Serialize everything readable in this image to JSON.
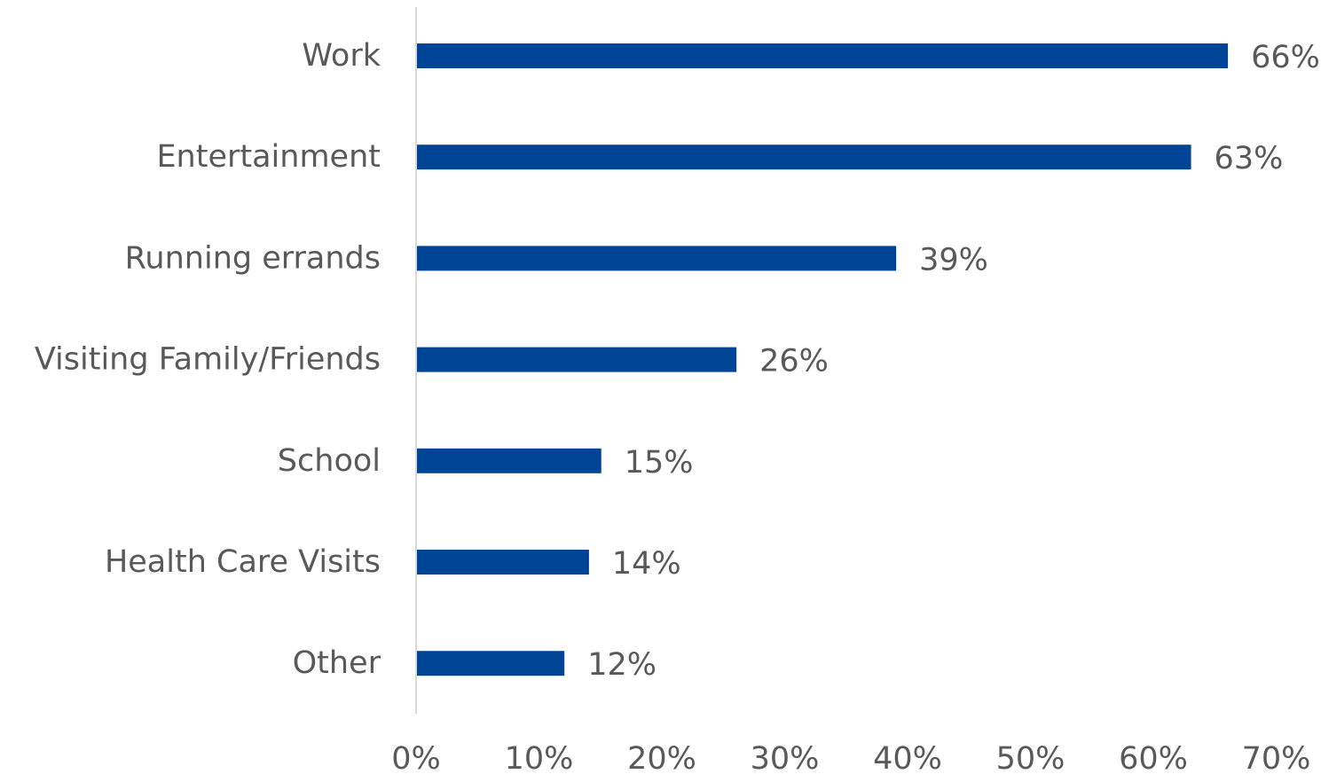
{
  "chart_data": {
    "type": "bar",
    "orientation": "horizontal",
    "categories": [
      "Work",
      "Entertainment",
      "Running errands",
      "Visiting Family/Friends",
      "School",
      "Health Care Visits",
      "Other"
    ],
    "values": [
      66,
      63,
      39,
      26,
      15,
      14,
      12
    ],
    "value_labels": [
      "66%",
      "63%",
      "39%",
      "26%",
      "15%",
      "14%",
      "12%"
    ],
    "x_ticks": [
      "0%",
      "10%",
      "20%",
      "30%",
      "40%",
      "50%",
      "60%",
      "70%"
    ],
    "xlim": [
      0,
      70
    ],
    "grid": false,
    "colors": {
      "bar": "#004595",
      "text": "#595959",
      "axis": "#d9d9d9"
    }
  }
}
